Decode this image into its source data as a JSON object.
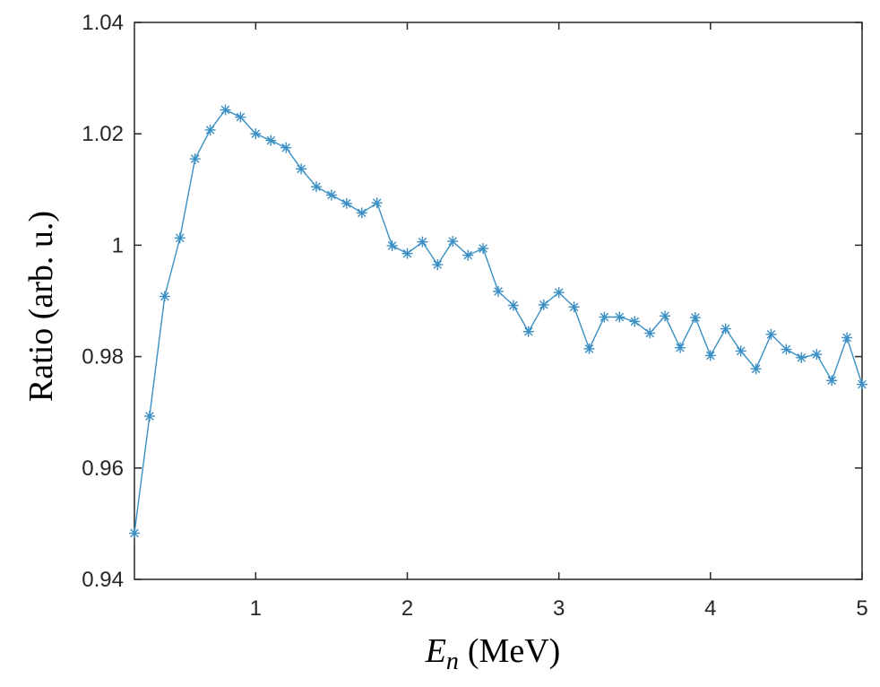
{
  "chart_data": {
    "type": "line",
    "title": "",
    "xlabel_symbol": "E",
    "xlabel_subscript": "n",
    "xlabel_unit": "(MeV)",
    "ylabel": "Ratio (arb. u.)",
    "xlim": [
      0.2,
      5
    ],
    "ylim": [
      0.94,
      1.04
    ],
    "xticks": [
      1,
      2,
      3,
      4,
      5
    ],
    "xtick_labels": [
      "1",
      "2",
      "3",
      "4",
      "5"
    ],
    "yticks": [
      0.94,
      0.96,
      0.98,
      1,
      1.02,
      1.04
    ],
    "ytick_labels": [
      "0.94",
      "0.96",
      "0.98",
      "1",
      "1.02",
      "1.04"
    ],
    "grid": false,
    "marker": "asterisk",
    "color": "#3a8fc4",
    "series": [
      {
        "x": [
          0.2,
          0.3,
          0.4,
          0.5,
          0.6,
          0.7,
          0.8,
          0.9,
          1.0,
          1.1,
          1.2,
          1.3,
          1.4,
          1.5,
          1.6,
          1.7,
          1.8,
          1.9,
          2.0,
          2.1,
          2.2,
          2.3,
          2.4,
          2.5,
          2.6,
          2.7,
          2.8,
          2.9,
          3.0,
          3.1,
          3.2,
          3.3,
          3.4,
          3.5,
          3.6,
          3.7,
          3.8,
          3.9,
          4.0,
          4.1,
          4.2,
          4.3,
          4.4,
          4.5,
          4.6,
          4.7,
          4.8,
          4.9,
          5.0
        ],
        "y": [
          0.9483,
          0.9693,
          0.9908,
          1.0013,
          1.0155,
          1.0207,
          1.0243,
          1.023,
          1.02,
          1.0188,
          1.0175,
          1.0137,
          1.0105,
          1.009,
          1.0075,
          1.0058,
          1.0076,
          0.9999,
          0.9985,
          1.0006,
          0.9965,
          1.0007,
          0.9982,
          0.9994,
          0.9917,
          0.9892,
          0.9845,
          0.9893,
          0.9915,
          0.9889,
          0.9814,
          0.9871,
          0.9871,
          0.9863,
          0.9842,
          0.9873,
          0.9816,
          0.987,
          0.9802,
          0.985,
          0.981,
          0.9778,
          0.984,
          0.9813,
          0.9798,
          0.9804,
          0.9757,
          0.9834,
          0.975
        ]
      }
    ]
  }
}
